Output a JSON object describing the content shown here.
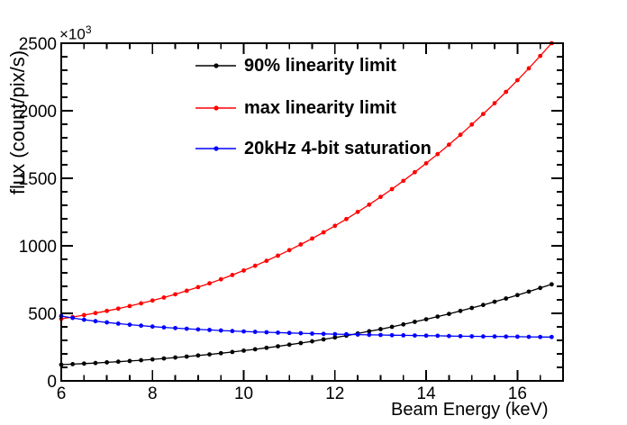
{
  "chart_data": {
    "type": "line",
    "title": "",
    "xlabel": "Beam Energy (keV)",
    "ylabel": "flux (count/pix/s)",
    "y_scale_multiplier_base": "×10",
    "y_scale_multiplier_exponent": "3",
    "xlim": [
      6,
      17
    ],
    "ylim": [
      0,
      2500
    ],
    "grid": false,
    "legend_position": "top-left-inside",
    "x_major_ticks": [
      6,
      8,
      10,
      12,
      14,
      16
    ],
    "x_tick_labels": [
      "6",
      "8",
      "10",
      "12",
      "14",
      "16"
    ],
    "x_minor_step": 0.5,
    "y_major_ticks": [
      0,
      500,
      1000,
      1500,
      2000,
      2500
    ],
    "y_tick_labels": [
      "0",
      "500",
      "1000",
      "1500",
      "2000",
      "2500"
    ],
    "y_minor_step": 100,
    "x": [
      6,
      6.25,
      6.5,
      6.75,
      7,
      7.25,
      7.5,
      7.75,
      8,
      8.25,
      8.5,
      8.75,
      9,
      9.25,
      9.5,
      9.75,
      10,
      10.25,
      10.5,
      10.75,
      11,
      11.25,
      11.5,
      11.75,
      12,
      12.25,
      12.5,
      12.75,
      13,
      13.25,
      13.5,
      13.75,
      14,
      14.25,
      14.5,
      14.75,
      15,
      15.25,
      15.5,
      15.75,
      16,
      16.25,
      16.5,
      16.75
    ],
    "series": [
      {
        "name": "90% linearity limit",
        "color": "#000000",
        "marker": "circle",
        "values": [
          120,
          124,
          128,
          132,
          137,
          142,
          147,
          153,
          159,
          166,
          173,
          180,
          188,
          196,
          205,
          214,
          224,
          234,
          245,
          256,
          268,
          280,
          293,
          307,
          321,
          335,
          351,
          367,
          383,
          400,
          418,
          437,
          456,
          476,
          496,
          518,
          540,
          562,
          586,
          610,
          635,
          661,
          688,
          715
        ]
      },
      {
        "name": "max linearity limit",
        "color": "#ff0000",
        "marker": "circle",
        "values": [
          460,
          473,
          487,
          502,
          518,
          535,
          554,
          574,
          595,
          617,
          641,
          667,
          694,
          722,
          752,
          784,
          817,
          852,
          889,
          927,
          968,
          1010,
          1054,
          1100,
          1148,
          1198,
          1251,
          1305,
          1362,
          1420,
          1481,
          1545,
          1611,
          1679,
          1749,
          1822,
          1898,
          1976,
          2056,
          2140,
          2226,
          2314,
          2406,
          2500
        ]
      },
      {
        "name": "20kHz 4-bit saturation",
        "color": "#0000ff",
        "marker": "circle",
        "values": [
          480,
          466,
          453,
          442,
          433,
          424,
          416,
          409,
          402,
          396,
          391,
          386,
          381,
          377,
          373,
          369,
          366,
          363,
          360,
          357,
          355,
          353,
          350,
          348,
          346,
          345,
          343,
          341,
          340,
          338,
          337,
          336,
          335,
          334,
          332,
          331,
          330,
          329,
          329,
          328,
          327,
          326,
          325,
          325
        ]
      }
    ]
  }
}
